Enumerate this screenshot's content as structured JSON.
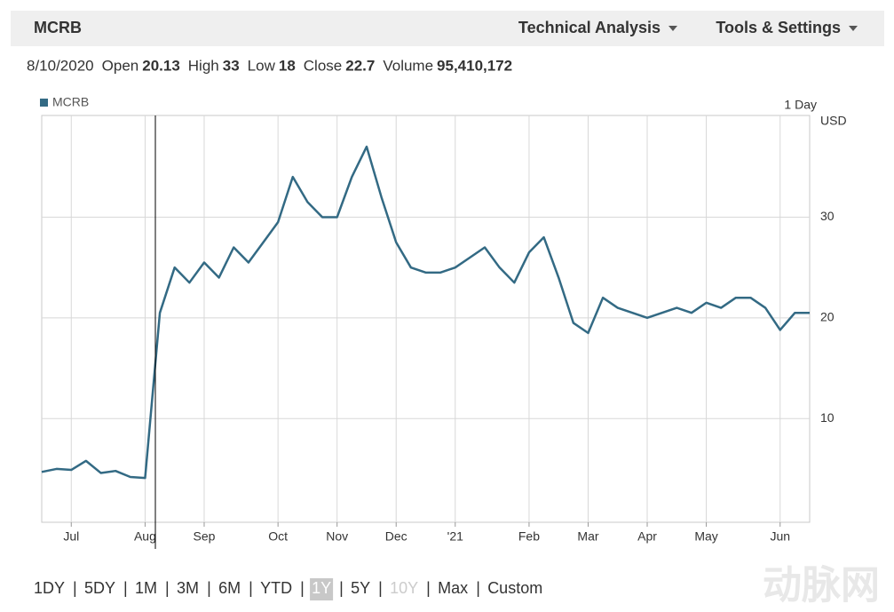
{
  "header": {
    "symbol": "MCRB",
    "menus": [
      "Technical Analysis",
      "Tools & Settings"
    ]
  },
  "quote": {
    "date": "8/10/2020",
    "fields": [
      {
        "label": "Open",
        "value": "20.13"
      },
      {
        "label": "High",
        "value": "33"
      },
      {
        "label": "Low",
        "value": "18"
      },
      {
        "label": "Close",
        "value": "22.7"
      },
      {
        "label": "Volume",
        "value": "95,410,172"
      }
    ]
  },
  "chart_data": {
    "type": "line",
    "interval": "1 Day",
    "y_axis_label": "USD",
    "categories": [
      null,
      null,
      "Jul",
      null,
      null,
      null,
      null,
      "Aug",
      null,
      null,
      null,
      "Sep",
      null,
      null,
      null,
      null,
      "Oct",
      null,
      null,
      null,
      "Nov",
      null,
      null,
      null,
      "Dec",
      null,
      null,
      null,
      "'21",
      null,
      null,
      null,
      null,
      "Feb",
      null,
      null,
      null,
      "Mar",
      null,
      null,
      null,
      "Apr",
      null,
      null,
      null,
      "May",
      null,
      null,
      null,
      null,
      "Jun",
      null,
      null
    ],
    "series": [
      {
        "name": "MCRB",
        "color": "#336a84",
        "values": [
          4.7,
          5.0,
          4.9,
          5.8,
          4.6,
          4.8,
          4.2,
          4.1,
          20.5,
          25.0,
          23.5,
          25.5,
          24.0,
          27.0,
          25.5,
          27.5,
          29.5,
          34.0,
          31.5,
          30.0,
          30.0,
          34.0,
          37.0,
          32.0,
          27.5,
          25.0,
          24.5,
          24.5,
          25.0,
          26.0,
          27.0,
          25.0,
          23.5,
          26.5,
          28.0,
          24.0,
          19.5,
          18.5,
          22.0,
          21.0,
          20.5,
          20.0,
          20.5,
          21.0,
          20.5,
          21.5,
          21.0,
          22.0,
          22.0,
          21.0,
          18.8,
          20.5,
          20.5
        ]
      }
    ],
    "ylim": [
      -0.3,
      40.1
    ],
    "yticks": [
      10,
      20,
      30
    ],
    "grid": true
  },
  "ranges": [
    "1DY",
    "5DY",
    "1M",
    "3M",
    "6M",
    "YTD",
    "1Y",
    "5Y",
    "10Y",
    "Max",
    "Custom"
  ],
  "selected_range": "1Y",
  "disabled_range": "10Y",
  "watermark": "动脉网"
}
